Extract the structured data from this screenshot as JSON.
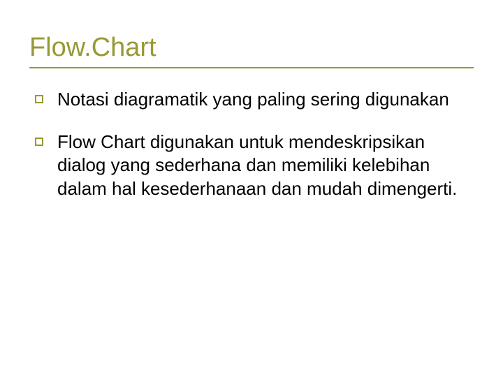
{
  "slide": {
    "title": "Flow.Chart",
    "rule_color": "#989933",
    "title_color": "#989933",
    "title_fontsize": 38,
    "background_color": "#ffffff",
    "bullets": [
      {
        "text": "Notasi diagramatik yang paling sering digunakan"
      },
      {
        "text": "Flow Chart digunakan untuk mendeskripsikan dialog yang sederhana dan memiliki kelebihan dalam hal kesederhanaan dan mudah dimengerti."
      }
    ],
    "body_fontsize": 26,
    "body_color": "#000000",
    "bullet_outline_color": "#989933"
  }
}
